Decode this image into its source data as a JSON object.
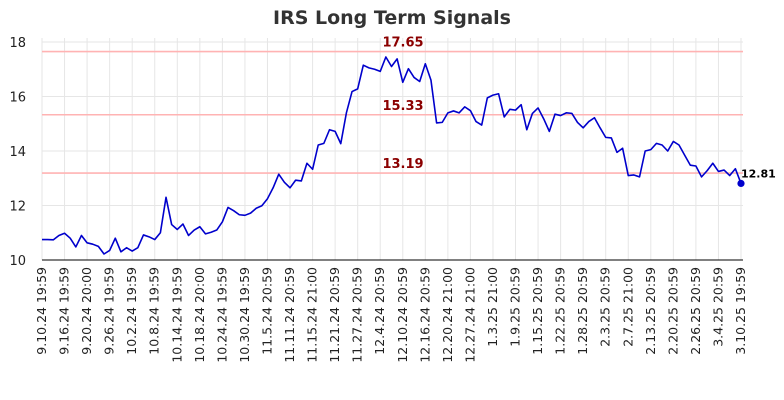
{
  "chart_data": {
    "type": "line",
    "title": "IRS Long Term Signals",
    "xlabel": "",
    "ylabel": "",
    "ylim": [
      10,
      18
    ],
    "y_ticks": [
      "10",
      "12",
      "14",
      "16",
      "18"
    ],
    "grid": true,
    "line_color": "#0000cc",
    "level_color": "#ffb3b3",
    "level_label_color": "#8b0000",
    "x_tick_labels": [
      "9.10.24 19:59",
      "9.16.24 19:59",
      "9.20.24 20:00",
      "9.26.24 19:59",
      "10.2.24 19:59",
      "10.8.24 19:59",
      "10.14.24 19:59",
      "10.18.24 20:00",
      "10.24.24 19:59",
      "10.30.24 19:59",
      "11.5.24 20:59",
      "11.11.24 20:59",
      "11.15.24 21:00",
      "11.21.24 20:59",
      "11.27.24 20:59",
      "12.4.24 20:59",
      "12.10.24 20:59",
      "12.16.24 20:59",
      "12.20.24 21:00",
      "12.27.24 21:00",
      "1.3.25 21:00",
      "1.9.25 20:59",
      "1.15.25 20:59",
      "1.22.25 20:59",
      "1.28.25 20:59",
      "2.3.25 20:59",
      "2.7.25 21:00",
      "2.13.25 20:59",
      "2.20.25 20:59",
      "2.26.25 20:59",
      "3.4.25 20:59",
      "3.10.25 19:59"
    ],
    "levels": [
      {
        "value": 17.65,
        "label": "17.65"
      },
      {
        "value": 15.33,
        "label": "15.33"
      },
      {
        "value": 13.19,
        "label": "13.19"
      }
    ],
    "series": [
      {
        "values": [
          10.75,
          10.75,
          10.74,
          10.9,
          10.98,
          10.8,
          10.48,
          10.9,
          10.63,
          10.58,
          10.5,
          10.22,
          10.35,
          10.8,
          10.3,
          10.45,
          10.33,
          10.45,
          10.92,
          10.85,
          10.75,
          11.0,
          12.3,
          11.3,
          11.12,
          11.32,
          10.9,
          11.1,
          11.22,
          10.96,
          11.02,
          11.1,
          11.4,
          11.93,
          11.81,
          11.66,
          11.64,
          11.72,
          11.9,
          11.99,
          12.25,
          12.65,
          13.15,
          12.85,
          12.65,
          12.93,
          12.9,
          13.55,
          13.33,
          14.22,
          14.28,
          14.78,
          14.72,
          14.27,
          15.4,
          16.18,
          16.28,
          17.15,
          17.05,
          17.0,
          16.92,
          17.45,
          17.1,
          17.38,
          16.52,
          17.02,
          16.7,
          16.55,
          17.2,
          16.6,
          15.03,
          15.05,
          15.4,
          15.47,
          15.4,
          15.62,
          15.48,
          15.08,
          14.95,
          15.95,
          16.05,
          16.1,
          15.25,
          15.53,
          15.5,
          15.7,
          14.78,
          15.38,
          15.58,
          15.18,
          14.72,
          15.35,
          15.3,
          15.4,
          15.38,
          15.05,
          14.85,
          15.08,
          15.22,
          14.85,
          14.5,
          14.48,
          13.95,
          14.1,
          13.1,
          13.12,
          13.05,
          14.0,
          14.05,
          14.28,
          14.22,
          14.0,
          14.35,
          14.22,
          13.85,
          13.48,
          13.45,
          13.05,
          13.28,
          13.55,
          13.25,
          13.3,
          13.1,
          13.35,
          12.81
        ]
      }
    ],
    "last_point_label": "12.81"
  }
}
